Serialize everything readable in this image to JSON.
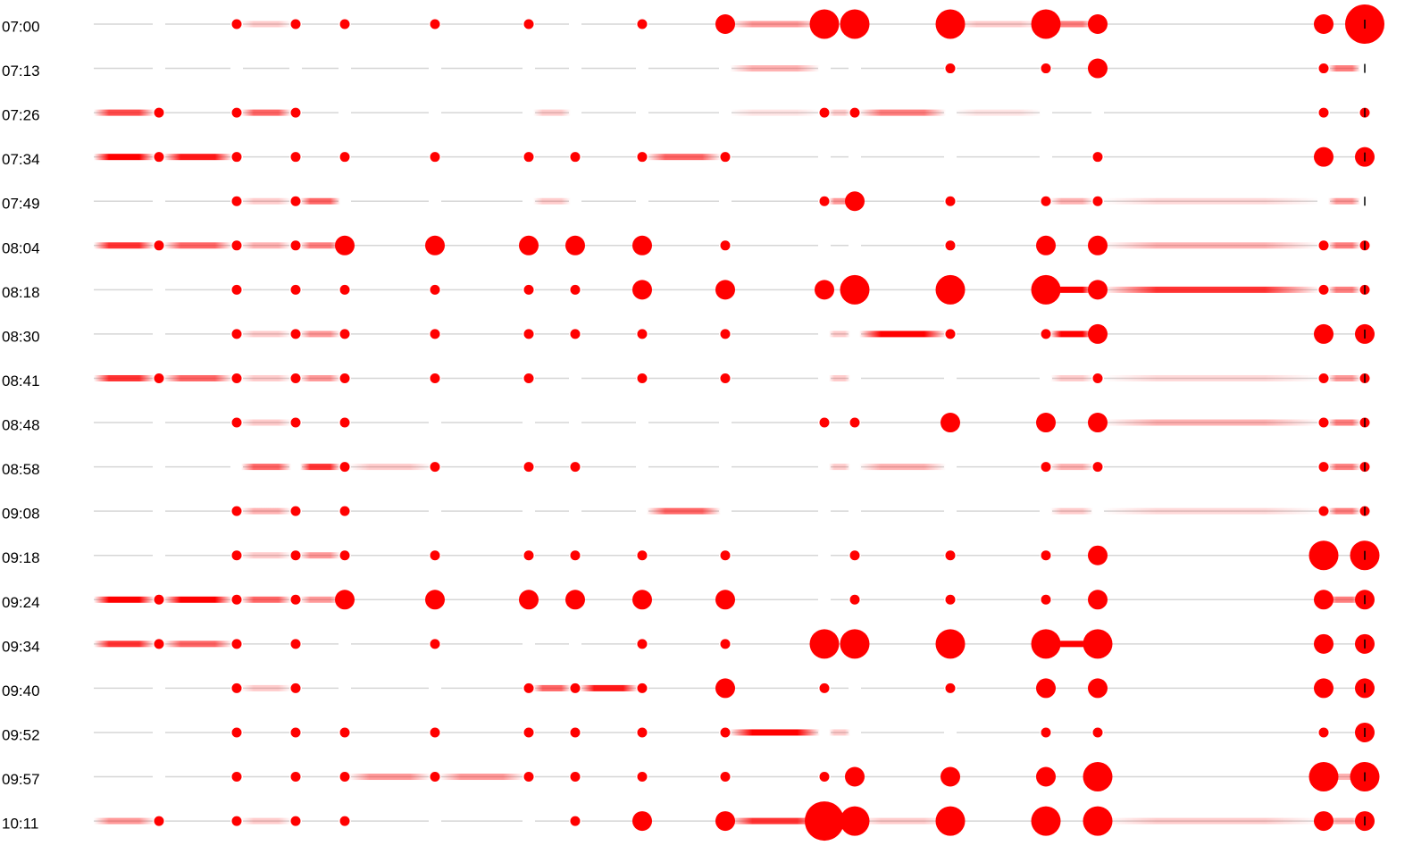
{
  "chart_data": {
    "type": "bubble-rows",
    "color": "#ff0000",
    "series": [
      {
        "name": "07:00",
        "values": [
          null,
          1,
          1,
          1,
          1,
          1,
          null,
          1,
          2,
          3,
          3,
          3,
          3,
          2,
          2,
          4
        ],
        "links": [
          null,
          null,
          0.2,
          null,
          null,
          null,
          null,
          null,
          null,
          0.4,
          null,
          null,
          0.2,
          0.5,
          null,
          null
        ]
      },
      {
        "name": "07:13",
        "values": [
          null,
          null,
          null,
          null,
          null,
          null,
          null,
          null,
          null,
          null,
          null,
          1,
          1,
          2,
          1,
          null
        ],
        "links": [
          null,
          null,
          null,
          null,
          null,
          null,
          null,
          null,
          null,
          0.3,
          null,
          null,
          null,
          null,
          null,
          0.5
        ]
      },
      {
        "name": "07:26",
        "values": [
          1,
          1,
          1,
          null,
          null,
          null,
          null,
          null,
          null,
          1,
          1,
          null,
          null,
          null,
          1,
          1
        ],
        "links": [
          0.7,
          null,
          0.6,
          null,
          null,
          null,
          0.2,
          null,
          null,
          0.1,
          0.2,
          0.5,
          0.1,
          null,
          null,
          null
        ]
      },
      {
        "name": "07:34",
        "values": [
          1,
          1,
          1,
          1,
          1,
          1,
          1,
          1,
          1,
          null,
          null,
          null,
          null,
          1,
          2,
          2
        ],
        "links": [
          1,
          0.9,
          null,
          null,
          null,
          null,
          null,
          null,
          0.6,
          null,
          null,
          null,
          null,
          null,
          null,
          null
        ]
      },
      {
        "name": "07:49",
        "values": [
          null,
          1,
          1,
          null,
          null,
          null,
          null,
          null,
          null,
          1,
          2,
          1,
          1,
          1,
          null,
          null
        ],
        "links": [
          null,
          null,
          0.2,
          0.6,
          null,
          null,
          0.2,
          null,
          null,
          null,
          0.4,
          null,
          null,
          0.3,
          0.15,
          0.4
        ]
      },
      {
        "name": "08:04",
        "values": [
          1,
          1,
          1,
          2,
          2,
          2,
          2,
          2,
          1,
          null,
          null,
          1,
          2,
          2,
          1,
          1
        ],
        "links": [
          0.8,
          0.6,
          0.3,
          0.5,
          null,
          null,
          null,
          null,
          null,
          null,
          null,
          null,
          null,
          null,
          0.3,
          0.5
        ]
      },
      {
        "name": "08:18",
        "values": [
          null,
          1,
          1,
          1,
          1,
          1,
          1,
          2,
          2,
          2,
          3,
          3,
          3,
          2,
          1,
          1
        ],
        "links": [
          null,
          null,
          null,
          null,
          null,
          null,
          null,
          null,
          null,
          null,
          null,
          null,
          null,
          1,
          0.8,
          0.5
        ]
      },
      {
        "name": "08:30",
        "values": [
          null,
          1,
          1,
          1,
          1,
          1,
          1,
          1,
          1,
          null,
          null,
          1,
          1,
          2,
          2,
          2
        ],
        "links": [
          null,
          null,
          0.2,
          0.4,
          null,
          null,
          null,
          null,
          null,
          null,
          0.2,
          1,
          null,
          1,
          null,
          null
        ]
      },
      {
        "name": "08:41",
        "values": [
          1,
          1,
          1,
          1,
          1,
          1,
          null,
          1,
          1,
          null,
          null,
          null,
          null,
          1,
          1,
          1
        ],
        "links": [
          0.8,
          0.6,
          0.2,
          0.4,
          null,
          null,
          null,
          null,
          null,
          null,
          0.2,
          null,
          null,
          0.2,
          0.15,
          0.4
        ]
      },
      {
        "name": "08:48",
        "values": [
          null,
          1,
          1,
          1,
          null,
          null,
          null,
          null,
          null,
          1,
          1,
          2,
          2,
          2,
          1,
          1
        ],
        "links": [
          null,
          null,
          0.2,
          null,
          null,
          null,
          null,
          null,
          null,
          null,
          null,
          null,
          null,
          null,
          0.3,
          0.5
        ]
      },
      {
        "name": "08:58",
        "values": [
          null,
          null,
          null,
          1,
          1,
          1,
          1,
          null,
          null,
          null,
          null,
          null,
          1,
          1,
          1,
          1
        ],
        "links": [
          null,
          null,
          0.6,
          0.8,
          0.2,
          null,
          null,
          null,
          null,
          null,
          0.2,
          0.3,
          null,
          0.3,
          null,
          0.5
        ]
      },
      {
        "name": "09:08",
        "values": [
          null,
          1,
          1,
          1,
          null,
          null,
          null,
          null,
          null,
          null,
          null,
          null,
          null,
          null,
          1,
          1
        ],
        "links": [
          null,
          null,
          0.3,
          null,
          null,
          null,
          null,
          null,
          0.6,
          null,
          null,
          null,
          null,
          0.2,
          0.15,
          0.5
        ]
      },
      {
        "name": "09:18",
        "values": [
          null,
          1,
          1,
          1,
          1,
          1,
          1,
          1,
          1,
          null,
          1,
          1,
          1,
          2,
          3,
          3
        ],
        "links": [
          null,
          null,
          0.2,
          0.4,
          null,
          null,
          null,
          null,
          null,
          null,
          null,
          null,
          null,
          null,
          null,
          null
        ]
      },
      {
        "name": "09:24",
        "values": [
          1,
          1,
          1,
          2,
          2,
          2,
          2,
          2,
          2,
          null,
          1,
          1,
          1,
          2,
          2,
          2
        ],
        "links": [
          1,
          1,
          0.6,
          0.4,
          null,
          null,
          null,
          null,
          null,
          null,
          null,
          null,
          null,
          null,
          null,
          0.5
        ]
      },
      {
        "name": "09:34",
        "values": [
          1,
          1,
          1,
          null,
          1,
          null,
          null,
          1,
          1,
          3,
          3,
          3,
          3,
          3,
          2,
          2
        ],
        "links": [
          0.8,
          0.6,
          null,
          null,
          null,
          null,
          null,
          null,
          null,
          null,
          null,
          null,
          null,
          1,
          null,
          null
        ]
      },
      {
        "name": "09:40",
        "values": [
          null,
          1,
          1,
          null,
          null,
          1,
          1,
          1,
          2,
          1,
          null,
          1,
          2,
          2,
          2,
          2
        ],
        "links": [
          null,
          null,
          0.2,
          null,
          null,
          null,
          0.6,
          0.9,
          null,
          null,
          null,
          null,
          null,
          null,
          null,
          null
        ]
      },
      {
        "name": "09:52",
        "values": [
          null,
          1,
          1,
          1,
          1,
          1,
          1,
          1,
          1,
          null,
          null,
          null,
          1,
          1,
          1,
          2
        ],
        "links": [
          null,
          null,
          null,
          null,
          null,
          null,
          null,
          null,
          null,
          1,
          0.2,
          null,
          null,
          null,
          null,
          null
        ]
      },
      {
        "name": "09:57",
        "values": [
          null,
          1,
          1,
          1,
          1,
          1,
          1,
          1,
          1,
          1,
          2,
          2,
          2,
          3,
          3,
          3
        ],
        "links": [
          null,
          null,
          null,
          null,
          0.4,
          0.4,
          null,
          null,
          null,
          null,
          null,
          null,
          null,
          null,
          null,
          0.3
        ]
      },
      {
        "name": "10:11",
        "values": [
          1,
          1,
          1,
          1,
          null,
          null,
          1,
          2,
          2,
          4,
          3,
          3,
          3,
          3,
          2,
          2
        ],
        "links": [
          0.4,
          null,
          0.2,
          null,
          null,
          null,
          null,
          null,
          null,
          0.8,
          null,
          0.2,
          null,
          null,
          0.2,
          0.3
        ]
      }
    ]
  }
}
